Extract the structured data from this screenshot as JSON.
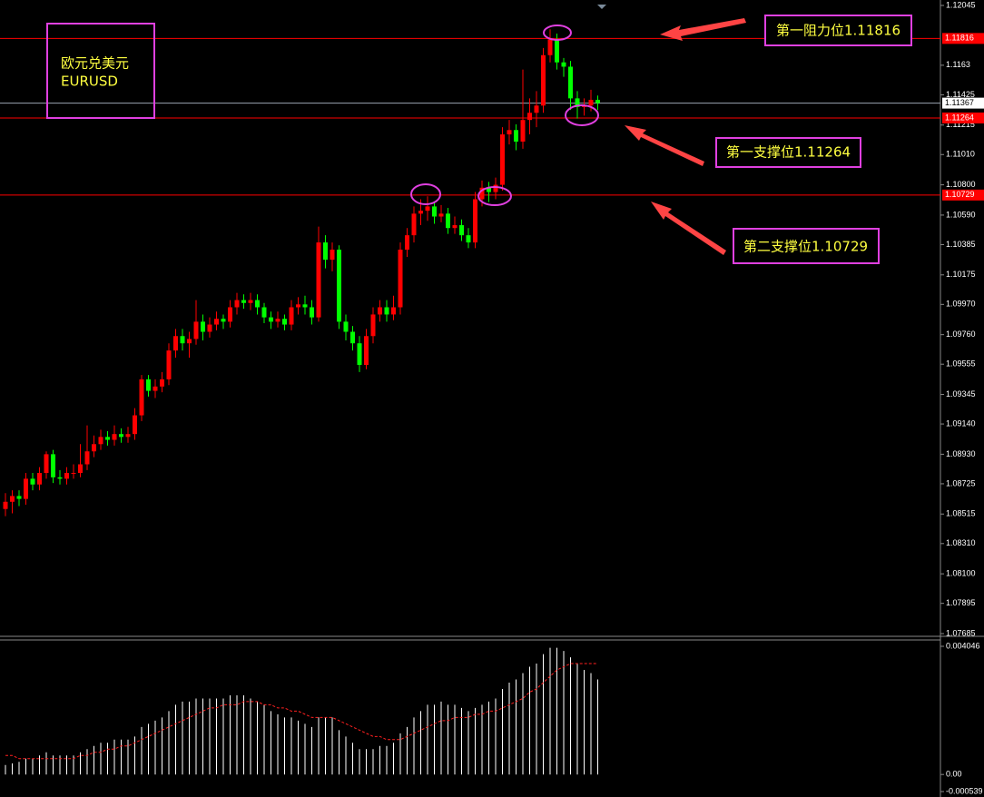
{
  "chart_data": {
    "type": "candlestick",
    "title": "欧元兑美元",
    "subtitle": "EURUSD",
    "annotations": [
      "第一阻力位1.11816",
      "第一支撑位1.11264",
      "第二支撑位1.10729"
    ],
    "up_color": "#ff0000",
    "down_color": "#00ff00",
    "ylim": [
      1.07685,
      1.12045
    ],
    "yticks": [
      1.12045,
      1.1163,
      1.11425,
      1.11215,
      {
        "value": 1.1101,
        "label": "1.11010"
      },
      {
        "value": 1.108,
        "label": "1.10800"
      },
      {
        "value": 1.1059,
        "label": "1.10590"
      },
      1.10385,
      1.10175,
      {
        "value": 1.0997,
        "label": "1.09970"
      },
      {
        "value": 1.0976,
        "label": "1.09760"
      },
      1.09555,
      1.09345,
      {
        "value": 1.0914,
        "label": "1.09140"
      },
      {
        "value": 1.0893,
        "label": "1.08930"
      },
      1.08725,
      1.08515,
      {
        "value": 1.0831,
        "label": "1.08310"
      },
      {
        "value": 1.081,
        "label": "1.08100"
      },
      1.07895,
      1.07685
    ],
    "levels": [
      {
        "value": 1.11816,
        "color": "#ff0000"
      },
      {
        "value": 1.11264,
        "color": "#ff0000"
      },
      {
        "value": 1.10729,
        "color": "#ff0000"
      }
    ],
    "bid": 1.11367,
    "open": [
      1.0855,
      1.086,
      1.0864,
      1.0862,
      1.0876,
      1.0872,
      1.088,
      1.0893,
      1.0877,
      1.0876,
      1.088,
      1.088,
      1.0886,
      1.0895,
      1.09,
      1.0905,
      1.0903,
      1.0907,
      1.0905,
      1.0907,
      1.092,
      1.0945,
      1.0937,
      1.094,
      1.0945,
      1.0965,
      1.0975,
      1.097,
      1.0973,
      1.0985,
      1.0978,
      1.0983,
      1.0987,
      1.0985,
      1.0995,
      1.1,
      1.0998,
      1.1,
      1.0995,
      1.0988,
      1.0985,
      1.0987,
      1.0983,
      1.0995,
      1.0997,
      1.0995,
      1.0988,
      1.104,
      1.1028,
      1.1035,
      1.0985,
      1.0978,
      1.097,
      1.0955,
      1.0975,
      1.099,
      1.0995,
      1.099,
      1.0995,
      1.1035,
      1.1045,
      1.106,
      1.1062,
      1.1065,
      1.1058,
      1.106,
      1.105,
      1.1052,
      1.1045,
      1.104,
      1.107,
      1.1078,
      1.1075,
      1.108,
      1.1115,
      1.1118,
      1.111,
      1.1125,
      1.113,
      1.1135,
      1.117,
      1.1181,
      1.1165,
      1.1162,
      1.114,
      1.1134,
      1.1135,
      1.1139
    ],
    "close": [
      1.086,
      1.0864,
      1.0862,
      1.0876,
      1.0872,
      1.088,
      1.0893,
      1.0877,
      1.0876,
      1.088,
      1.088,
      1.0886,
      1.0895,
      1.09,
      1.0905,
      1.0903,
      1.0907,
      1.0905,
      1.0907,
      1.092,
      1.0945,
      1.0937,
      1.094,
      1.0945,
      1.0965,
      1.0975,
      1.097,
      1.0973,
      1.0985,
      1.0978,
      1.0983,
      1.0987,
      1.0985,
      1.0995,
      1.1,
      1.0998,
      1.1,
      1.0995,
      1.0988,
      1.0985,
      1.0987,
      1.0983,
      1.0995,
      1.0997,
      1.0995,
      1.0988,
      1.104,
      1.1028,
      1.1035,
      1.0985,
      1.0978,
      1.097,
      1.0955,
      1.0975,
      1.099,
      1.0995,
      1.099,
      1.0995,
      1.1035,
      1.1045,
      1.106,
      1.1062,
      1.1065,
      1.1058,
      1.106,
      1.105,
      1.1052,
      1.1045,
      1.104,
      1.107,
      1.1078,
      1.1075,
      1.108,
      1.1115,
      1.1118,
      1.111,
      1.1125,
      1.113,
      1.1135,
      1.117,
      1.1181,
      1.1165,
      1.1162,
      1.114,
      1.1134,
      1.1135,
      1.1139,
      1.11367
    ],
    "high": [
      1.0866,
      1.0868,
      1.0868,
      1.088,
      1.088,
      1.0884,
      1.0895,
      1.0896,
      1.0882,
      1.0884,
      1.0886,
      1.09,
      1.0913,
      1.0906,
      1.091,
      1.0909,
      1.0913,
      1.0911,
      1.0912,
      1.0925,
      1.0948,
      1.0948,
      1.0945,
      1.095,
      1.097,
      1.098,
      1.098,
      1.0978,
      1.1,
      1.099,
      1.0988,
      1.0992,
      1.099,
      1.1,
      1.1005,
      1.1004,
      1.1005,
      1.1004,
      1.0998,
      1.0992,
      1.0992,
      1.099,
      1.1,
      1.1002,
      1.1003,
      1.1,
      1.1051,
      1.1045,
      1.104,
      1.1038,
      1.099,
      1.0982,
      1.0975,
      1.098,
      1.0995,
      1.1,
      1.1,
      1.1003,
      1.104,
      1.105,
      1.1065,
      1.107,
      1.1072,
      1.1068,
      1.1066,
      1.1064,
      1.1058,
      1.1056,
      1.105,
      1.1075,
      1.1083,
      1.1082,
      1.1085,
      1.112,
      1.1125,
      1.1122,
      1.116,
      1.114,
      1.1145,
      1.1175,
      1.1188,
      1.1185,
      1.1168,
      1.1166,
      1.1145,
      1.114,
      1.1146,
      1.1142
    ],
    "low": [
      1.085,
      1.0852,
      1.0857,
      1.0858,
      1.0868,
      1.0868,
      1.0876,
      1.0873,
      1.0872,
      1.0872,
      1.0876,
      1.0877,
      1.0882,
      1.0891,
      1.0896,
      1.0899,
      1.0899,
      1.0901,
      1.0901,
      1.0903,
      1.0916,
      1.0933,
      1.0932,
      1.0936,
      1.0941,
      1.096,
      1.0965,
      1.096,
      1.0969,
      1.0972,
      1.0974,
      1.0979,
      1.098,
      1.0981,
      1.099,
      1.0994,
      1.0993,
      1.099,
      1.0984,
      1.098,
      1.0981,
      1.0979,
      1.0979,
      1.099,
      1.099,
      1.0983,
      1.0985,
      1.1022,
      1.102,
      1.098,
      1.0972,
      1.0965,
      1.095,
      1.0952,
      1.097,
      1.0985,
      1.0985,
      1.0986,
      1.099,
      1.103,
      1.104,
      1.1052,
      1.1055,
      1.1053,
      1.1054,
      1.1046,
      1.1046,
      1.1041,
      1.1036,
      1.1036,
      1.1065,
      1.1068,
      1.107,
      1.1076,
      1.1108,
      1.1104,
      1.1105,
      1.1115,
      1.112,
      1.113,
      1.1165,
      1.116,
      1.1155,
      1.1132,
      1.1126,
      1.1128,
      1.1131,
      1.1132
    ],
    "indicator": {
      "ylim": [
        -0.000539,
        0.004046
      ],
      "yticks": [
        0.004046,
        {
          "value": 0,
          "label": "0.00"
        },
        -0.000539
      ],
      "histogram": {
        "color": "#ffffff",
        "values": [
          0.0003,
          0.00035,
          0.0004,
          0.0005,
          0.0005,
          0.0006,
          0.0007,
          0.0006,
          0.0006,
          0.0006,
          0.0006,
          0.0007,
          0.0008,
          0.0009,
          0.001,
          0.001,
          0.0011,
          0.0011,
          0.0011,
          0.0012,
          0.0015,
          0.0016,
          0.0017,
          0.0018,
          0.002,
          0.0022,
          0.0023,
          0.0023,
          0.0024,
          0.0024,
          0.0024,
          0.0024,
          0.0024,
          0.0025,
          0.0025,
          0.0025,
          0.0024,
          0.0023,
          0.0022,
          0.002,
          0.0019,
          0.0018,
          0.0018,
          0.0017,
          0.0016,
          0.0015,
          0.0018,
          0.0018,
          0.0018,
          0.0014,
          0.0012,
          0.001,
          0.0008,
          0.0008,
          0.0008,
          0.0009,
          0.0009,
          0.001,
          0.0013,
          0.0015,
          0.0018,
          0.002,
          0.0022,
          0.0022,
          0.0023,
          0.0022,
          0.0022,
          0.0021,
          0.002,
          0.0021,
          0.0022,
          0.0023,
          0.0024,
          0.0027,
          0.0029,
          0.003,
          0.0032,
          0.0034,
          0.0035,
          0.0038,
          0.004,
          0.004,
          0.0039,
          0.0037,
          0.0035,
          0.0033,
          0.0032,
          0.003
        ]
      },
      "signal": {
        "color": "#ff2020",
        "values": [
          0.0006,
          0.0006,
          0.0005,
          0.0005,
          0.0005,
          0.0005,
          0.0005,
          0.0005,
          0.0005,
          0.0005,
          0.0005,
          0.0006,
          0.0006,
          0.0007,
          0.0007,
          0.0008,
          0.0008,
          0.0009,
          0.0009,
          0.001,
          0.0011,
          0.0012,
          0.0013,
          0.0014,
          0.0015,
          0.0016,
          0.0017,
          0.0018,
          0.0019,
          0.002,
          0.0021,
          0.0021,
          0.0022,
          0.0022,
          0.0022,
          0.0023,
          0.0023,
          0.0023,
          0.0022,
          0.0022,
          0.0021,
          0.0021,
          0.002,
          0.002,
          0.0019,
          0.0018,
          0.0018,
          0.0018,
          0.0018,
          0.0017,
          0.0016,
          0.0015,
          0.0014,
          0.0013,
          0.0012,
          0.0012,
          0.0011,
          0.0011,
          0.0011,
          0.0012,
          0.0013,
          0.0014,
          0.0015,
          0.0016,
          0.0017,
          0.0017,
          0.0018,
          0.0018,
          0.0018,
          0.0019,
          0.0019,
          0.002,
          0.002,
          0.0021,
          0.0022,
          0.0023,
          0.0024,
          0.0026,
          0.0027,
          0.0029,
          0.0031,
          0.0033,
          0.0034,
          0.0035,
          0.0035,
          0.0035,
          0.0035,
          0.0035
        ]
      }
    }
  }
}
